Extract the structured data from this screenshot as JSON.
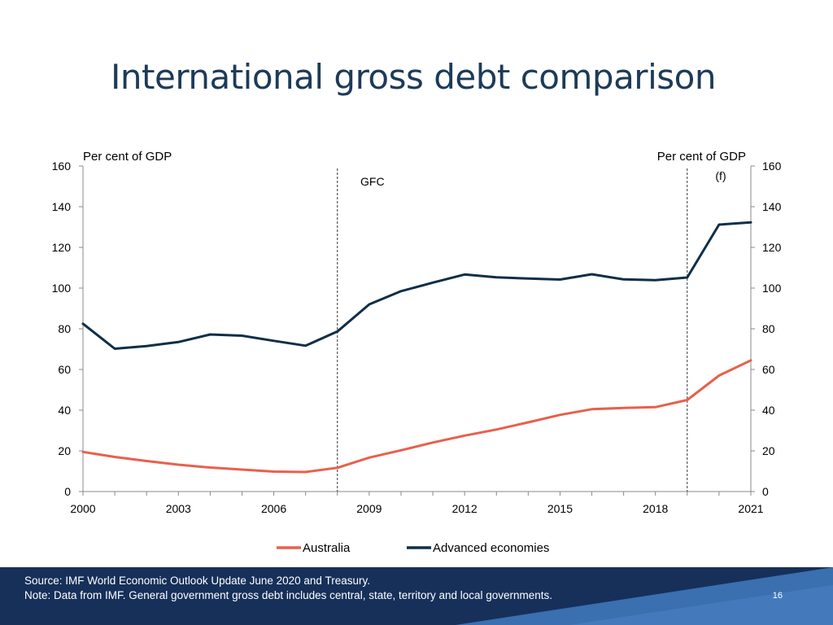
{
  "slide": {
    "title": "International gross debt comparison",
    "source_note": "Source: IMF World Economic Outlook Update June 2020 and Treasury.",
    "data_note": "Note: Data from IMF. General government gross debt includes central, state, territory and local governments.",
    "page_number": "16"
  },
  "colors": {
    "australia": "#e8604c",
    "advanced_economies": "#0f2e48",
    "title": "#1d3b58",
    "footer": "#16305a"
  },
  "chart_data": {
    "type": "line",
    "title": "",
    "ylabel_left": "Per cent of GDP",
    "ylabel_right": "Per cent of GDP",
    "ylim": [
      0,
      160
    ],
    "yticks": [
      0,
      20,
      40,
      60,
      80,
      100,
      120,
      140,
      160
    ],
    "xlim": [
      2000,
      2021
    ],
    "xtick_labels": [
      2000,
      2003,
      2006,
      2009,
      2012,
      2015,
      2018,
      2021
    ],
    "grid": false,
    "legend_position": "bottom",
    "annotations": [
      {
        "x": 2008,
        "label": "GFC"
      },
      {
        "x": 2019,
        "label": "(f)"
      }
    ],
    "x": [
      2000,
      2001,
      2002,
      2003,
      2004,
      2005,
      2006,
      2007,
      2008,
      2009,
      2010,
      2011,
      2012,
      2013,
      2014,
      2015,
      2016,
      2017,
      2018,
      2019,
      2020,
      2021
    ],
    "series": [
      {
        "name": "Australia",
        "values": [
          19.5,
          17,
          15,
          13.2,
          11.8,
          10.8,
          9.8,
          9.6,
          11.7,
          16.7,
          20.3,
          24.1,
          27.5,
          30.5,
          34,
          37.7,
          40.5,
          41.1,
          41.5,
          45,
          57,
          64.5
        ]
      },
      {
        "name": "Advanced economies",
        "values": [
          82.5,
          70.2,
          71.5,
          73.5,
          77.2,
          76.6,
          74.1,
          71.7,
          78.7,
          92,
          98.5,
          102.7,
          106.7,
          105.3,
          104.7,
          104.2,
          106.8,
          104.3,
          103.9,
          105.2,
          131.2,
          132.3
        ]
      }
    ]
  }
}
